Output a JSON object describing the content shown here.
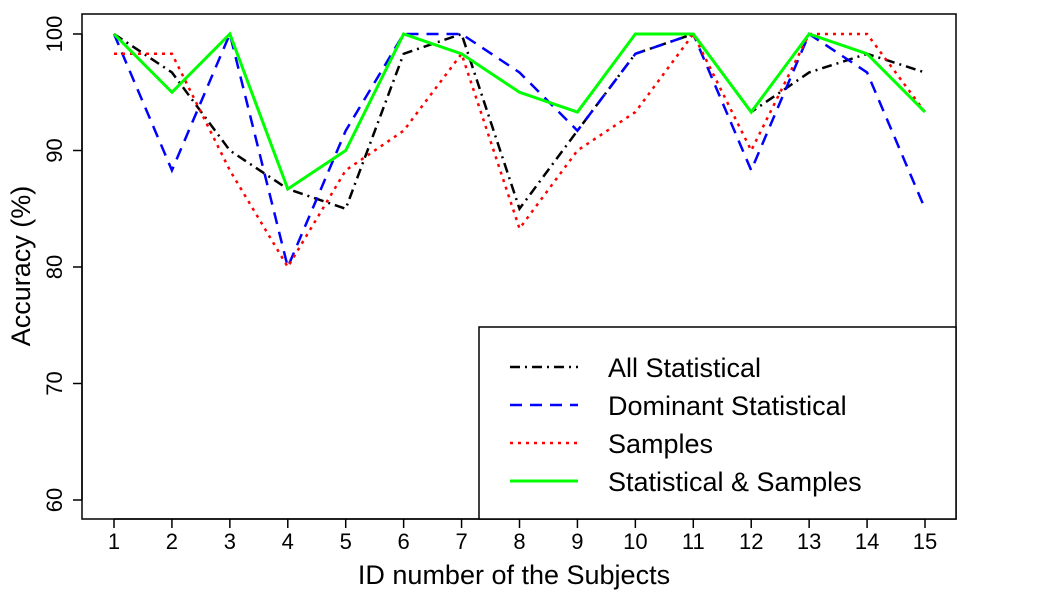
{
  "chart_data": {
    "type": "line",
    "title": "",
    "xlabel": "ID number of the Subjects",
    "ylabel": "Accuracy (%)",
    "x": [
      1,
      2,
      3,
      4,
      5,
      6,
      7,
      8,
      9,
      10,
      11,
      12,
      13,
      14,
      15
    ],
    "x_tick_labels": [
      "1",
      "2",
      "3",
      "4",
      "5",
      "6",
      "7",
      "8",
      "9",
      "10",
      "11",
      "12",
      "13",
      "14",
      "15"
    ],
    "y_ticks": [
      60,
      70,
      80,
      90,
      100
    ],
    "y_tick_labels": [
      "60",
      "70",
      "80",
      "90",
      "100"
    ],
    "ylim": [
      58.5,
      101.8
    ],
    "xlim": [
      0.4,
      15.3
    ],
    "grid": false,
    "legend_position": "bottom-right",
    "series": [
      {
        "name": "All Statistical",
        "color": "#000000",
        "style": "dash-dot",
        "values": [
          100,
          96.7,
          90,
          86.7,
          85,
          98.3,
          100,
          85,
          91.7,
          98.3,
          100,
          93.3,
          96.7,
          98.3,
          96.7
        ]
      },
      {
        "name": "Dominant Statistical",
        "color": "#0000ff",
        "style": "dashed",
        "values": [
          100,
          88.3,
          100,
          80,
          91.7,
          100,
          100,
          96.7,
          91.7,
          98.3,
          100,
          88.3,
          100,
          96.7,
          85
        ]
      },
      {
        "name": "Samples",
        "color": "#ff0000",
        "style": "dotted",
        "values": [
          98.3,
          98.3,
          88.3,
          80,
          88.3,
          91.7,
          98.3,
          83.3,
          90,
          93.3,
          100,
          90,
          100,
          100,
          93.3
        ]
      },
      {
        "name": "Statistical & Samples",
        "color": "#00ff00",
        "style": "solid",
        "values": [
          100,
          95,
          100,
          86.7,
          90,
          100,
          98.3,
          95,
          93.3,
          100,
          100,
          93.3,
          100,
          98.3,
          93.3
        ]
      }
    ]
  }
}
